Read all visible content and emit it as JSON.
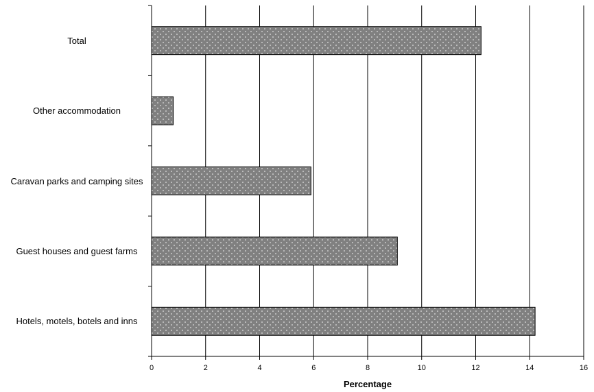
{
  "chart_data": {
    "type": "bar",
    "orientation": "horizontal",
    "categories": [
      "Total",
      "Other accommodation",
      "Caravan parks and camping sites",
      "Guest houses and guest farms",
      "Hotels, motels, botels and inns"
    ],
    "values": [
      12.2,
      0.8,
      5.9,
      9.1,
      14.2
    ],
    "xlabel": "Percentage",
    "ylabel": "",
    "xlim": [
      0,
      16
    ],
    "xticks": [
      "0",
      "2",
      "4",
      "6",
      "8",
      "10",
      "12",
      "14",
      "16"
    ],
    "grid": "vertical",
    "bar_color": "#808080",
    "bar_pattern": "dotted"
  }
}
